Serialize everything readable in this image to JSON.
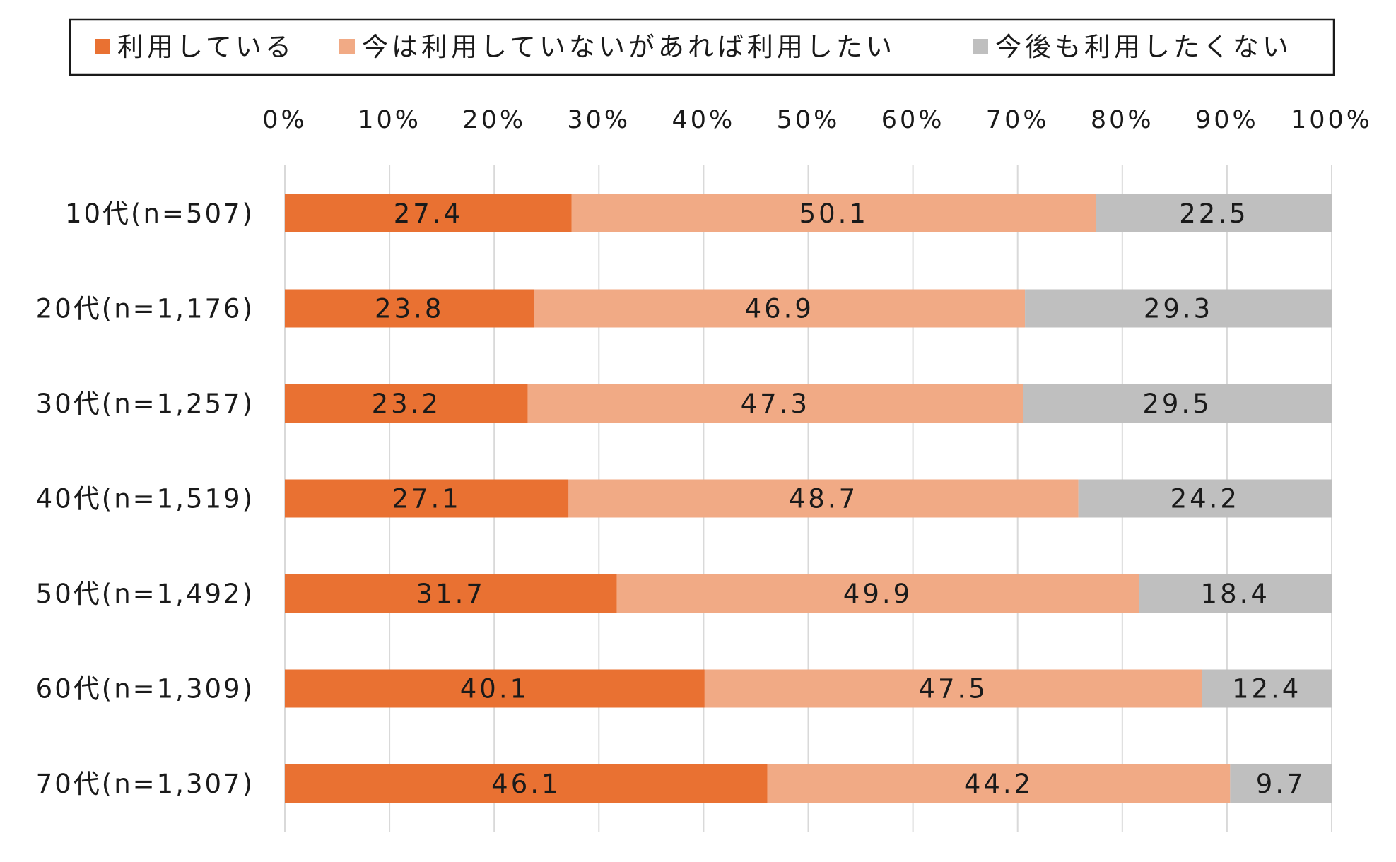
{
  "chart_data": {
    "type": "bar",
    "orientation": "horizontal",
    "stacked": "percent",
    "categories": [
      "10代(n=507)",
      "20代(n=1,176)",
      "30代(n=1,257)",
      "40代(n=1,519)",
      "50代(n=1,492)",
      "60代(n=1,309)",
      "70代(n=1,307)"
    ],
    "series": [
      {
        "name": "利用している",
        "color": "#E97132",
        "values": [
          27.4,
          23.8,
          23.2,
          27.1,
          31.7,
          40.1,
          46.1
        ],
        "labels": [
          "27.4",
          "23.8",
          "23.2",
          "27.1",
          "31.7",
          "40.1",
          "46.1"
        ]
      },
      {
        "name": "今は利用していないがあれば利用したい",
        "color": "#F1AA85",
        "values": [
          50.1,
          46.9,
          47.3,
          48.7,
          49.9,
          47.5,
          44.2
        ],
        "labels": [
          "50.1",
          "46.9",
          "47.3",
          "48.7",
          "49.9",
          "47.5",
          "44.2"
        ]
      },
      {
        "name": "今後も利用したくない",
        "color": "#BFBFBF",
        "values": [
          22.5,
          29.3,
          29.5,
          24.2,
          18.4,
          12.4,
          9.7
        ],
        "labels": [
          "22.5",
          "29.3",
          "29.5",
          "24.2",
          "18.4",
          "12.4",
          "9.7"
        ]
      }
    ],
    "xlim": [
      0,
      100
    ],
    "x_ticks": [
      "0%",
      "10%",
      "20%",
      "30%",
      "40%",
      "50%",
      "60%",
      "70%",
      "80%",
      "90%",
      "100%"
    ],
    "x_tick_values": [
      0,
      10,
      20,
      30,
      40,
      50,
      60,
      70,
      80,
      90,
      100
    ],
    "x_axis_position": "top",
    "grid": true,
    "legend_position": "top",
    "data_labels": true
  }
}
